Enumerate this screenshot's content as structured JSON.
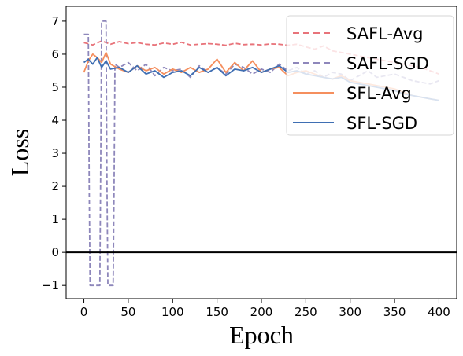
{
  "chart_data": {
    "type": "line",
    "xlabel": "Epoch",
    "ylabel": "Loss",
    "xlim": [
      -20,
      420
    ],
    "ylim": [
      -1.4,
      7.45
    ],
    "xticks": [
      0,
      50,
      100,
      150,
      200,
      250,
      300,
      350,
      400
    ],
    "yticks": [
      -1,
      0,
      1,
      2,
      3,
      4,
      5,
      6,
      7
    ],
    "grid": false,
    "hline": {
      "y": 0,
      "color": "#000000"
    },
    "legend_position": "top-right",
    "series": [
      {
        "name": "SAFL-Avg",
        "color": "#e8737a",
        "dash": "dashed",
        "x": [
          0,
          10,
          20,
          30,
          40,
          50,
          60,
          70,
          80,
          90,
          100,
          110,
          120,
          130,
          140,
          150,
          160,
          170,
          180,
          190,
          200,
          210,
          220,
          230,
          240,
          250,
          260,
          270,
          280,
          290,
          300,
          310,
          320,
          330,
          340,
          350,
          360,
          370,
          380,
          390,
          400
        ],
        "values": [
          6.35,
          6.28,
          6.4,
          6.3,
          6.38,
          6.32,
          6.35,
          6.3,
          6.28,
          6.34,
          6.3,
          6.36,
          6.28,
          6.3,
          6.32,
          6.3,
          6.27,
          6.33,
          6.29,
          6.3,
          6.28,
          6.31,
          6.3,
          6.27,
          6.3,
          6.22,
          6.15,
          6.25,
          6.1,
          6.05,
          6.0,
          5.95,
          5.9,
          5.85,
          5.8,
          5.75,
          5.7,
          5.65,
          5.6,
          5.5,
          5.4
        ]
      },
      {
        "name": "SAFL-SGD",
        "color": "#8e87bb",
        "dash": "dashed",
        "x": [
          0,
          5,
          6,
          7,
          18,
          19,
          20,
          25,
          26,
          27,
          33,
          34,
          35,
          40,
          50,
          60,
          70,
          80,
          90,
          100,
          110,
          120,
          130,
          140,
          150,
          160,
          170,
          180,
          190,
          200,
          210,
          220,
          230,
          240,
          250,
          260,
          270,
          280,
          290,
          300,
          310,
          320,
          330,
          340,
          350,
          360,
          370,
          380,
          390,
          400
        ],
        "values": [
          6.6,
          6.6,
          2.0,
          -1.0,
          -1.0,
          3.0,
          7.0,
          7.0,
          2.0,
          -1.0,
          -1.0,
          2.0,
          5.7,
          5.6,
          5.75,
          5.5,
          5.7,
          5.35,
          5.6,
          5.5,
          5.55,
          5.3,
          5.65,
          5.45,
          5.6,
          5.4,
          5.7,
          5.6,
          5.4,
          5.55,
          5.45,
          5.7,
          5.5,
          5.6,
          5.4,
          5.5,
          5.3,
          5.45,
          5.4,
          5.2,
          5.35,
          5.5,
          5.3,
          5.35,
          5.4,
          5.3,
          5.2,
          5.15,
          5.1,
          5.2
        ]
      },
      {
        "name": "SFL-Avg",
        "color": "#f58f5e",
        "dash": "solid",
        "x": [
          0,
          5,
          10,
          15,
          20,
          25,
          30,
          40,
          50,
          60,
          70,
          80,
          90,
          100,
          110,
          120,
          130,
          140,
          150,
          160,
          170,
          180,
          190,
          200,
          210,
          220,
          230,
          240,
          250,
          260,
          270,
          280,
          290,
          300,
          310,
          320,
          330,
          340,
          350,
          360,
          370,
          380,
          390,
          400
        ],
        "values": [
          5.45,
          5.8,
          6.0,
          5.9,
          5.75,
          6.05,
          5.7,
          5.55,
          5.45,
          5.65,
          5.5,
          5.6,
          5.4,
          5.55,
          5.45,
          5.6,
          5.45,
          5.55,
          5.85,
          5.45,
          5.75,
          5.5,
          5.8,
          5.45,
          5.55,
          5.6,
          5.35,
          5.45,
          5.5,
          5.4,
          5.3,
          5.25,
          5.35,
          5.2,
          5.15,
          5.1,
          5.05,
          5.0,
          4.95,
          4.85,
          4.75,
          4.7,
          4.65,
          4.6
        ]
      },
      {
        "name": "SFL-SGD",
        "color": "#3f6fb3",
        "dash": "solid",
        "x": [
          0,
          5,
          10,
          15,
          20,
          25,
          30,
          40,
          50,
          60,
          70,
          80,
          90,
          100,
          110,
          120,
          130,
          140,
          150,
          160,
          170,
          180,
          190,
          200,
          210,
          220,
          230,
          240,
          250,
          260,
          270,
          280,
          290,
          300,
          310,
          320,
          330,
          340,
          350,
          360,
          370,
          380,
          390,
          400
        ],
        "values": [
          5.75,
          5.85,
          5.7,
          5.9,
          5.6,
          5.8,
          5.55,
          5.6,
          5.45,
          5.65,
          5.4,
          5.5,
          5.3,
          5.45,
          5.5,
          5.35,
          5.6,
          5.45,
          5.6,
          5.35,
          5.55,
          5.5,
          5.6,
          5.45,
          5.55,
          5.65,
          5.45,
          5.5,
          5.4,
          5.35,
          5.3,
          5.25,
          5.3,
          5.15,
          5.1,
          5.05,
          5.0,
          4.95,
          4.9,
          4.8,
          4.75,
          4.7,
          4.65,
          4.6
        ]
      }
    ]
  }
}
